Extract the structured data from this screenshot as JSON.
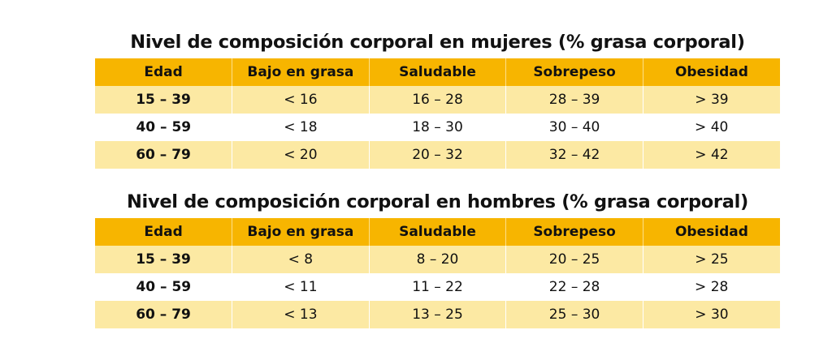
{
  "women": {
    "title": "Nivel de composición corporal en mujeres (% grasa corporal)",
    "headers": [
      "Edad",
      "Bajo en grasa",
      "Saludable",
      "Sobrepeso",
      "Obesidad"
    ],
    "rows": [
      [
        "15 – 39",
        "< 16",
        "16 – 28",
        "28 – 39",
        "> 39"
      ],
      [
        "40 – 59",
        "< 18",
        "18 – 30",
        "30 – 40",
        "> 40"
      ],
      [
        "60 – 79",
        "< 20",
        "20 – 32",
        "32 – 42",
        "> 42"
      ]
    ]
  },
  "men": {
    "title": "Nivel de composición corporal en hombres (% grasa corporal)",
    "headers": [
      "Edad",
      "Bajo en grasa",
      "Saludable",
      "Sobrepeso",
      "Obesidad"
    ],
    "rows": [
      [
        "15 – 39",
        "< 8",
        "8 – 20",
        "20 – 25",
        "> 25"
      ],
      [
        "40 – 59",
        "< 11",
        "11 – 22",
        "22 – 28",
        "> 28"
      ],
      [
        "60 – 79",
        "< 13",
        "13 – 25",
        "25 – 30",
        "> 30"
      ]
    ]
  },
  "colors": {
    "header_bg": "#f7b500",
    "shaded_row_bg": "#fce9a3",
    "plain_row_bg": "#ffffff"
  }
}
